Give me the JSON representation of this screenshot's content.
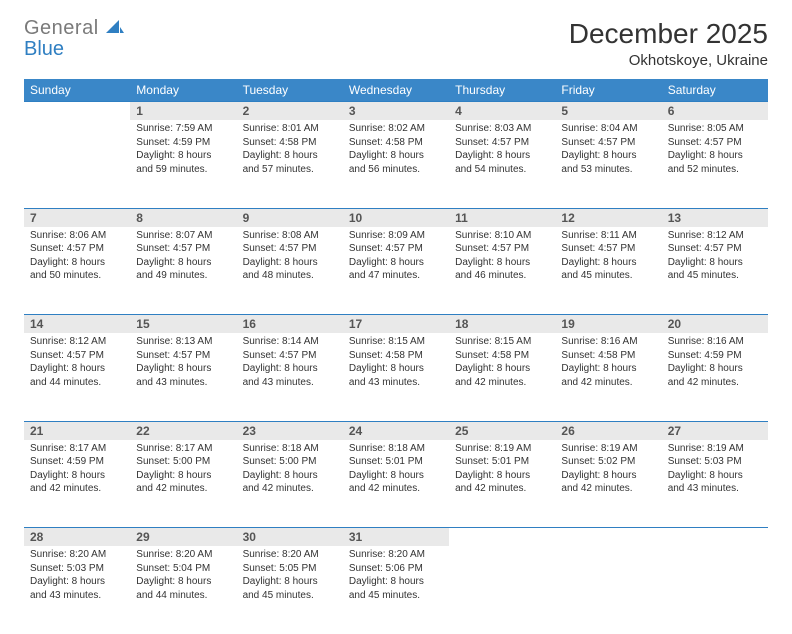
{
  "brand": {
    "line1": "General",
    "line2": "Blue",
    "logo_color": "#2f7fc2",
    "text_color_gray": "#7a7a7a"
  },
  "title": {
    "month": "December 2025",
    "location": "Okhotskoye, Ukraine"
  },
  "colors": {
    "header_bg": "#3a87c8",
    "header_text": "#ffffff",
    "daynum_bg": "#e9e9e9",
    "row_border": "#2f7fc2",
    "body_text": "#333333"
  },
  "fonts": {
    "title_size_pt": 21,
    "location_size_pt": 11,
    "weekday_size_pt": 9,
    "daynum_size_pt": 9,
    "cell_size_pt": 7.5
  },
  "weekdays": [
    "Sunday",
    "Monday",
    "Tuesday",
    "Wednesday",
    "Thursday",
    "Friday",
    "Saturday"
  ],
  "weeks": [
    [
      null,
      {
        "n": "1",
        "sunrise": "7:59 AM",
        "sunset": "4:59 PM",
        "daylight": "8 hours and 59 minutes."
      },
      {
        "n": "2",
        "sunrise": "8:01 AM",
        "sunset": "4:58 PM",
        "daylight": "8 hours and 57 minutes."
      },
      {
        "n": "3",
        "sunrise": "8:02 AM",
        "sunset": "4:58 PM",
        "daylight": "8 hours and 56 minutes."
      },
      {
        "n": "4",
        "sunrise": "8:03 AM",
        "sunset": "4:57 PM",
        "daylight": "8 hours and 54 minutes."
      },
      {
        "n": "5",
        "sunrise": "8:04 AM",
        "sunset": "4:57 PM",
        "daylight": "8 hours and 53 minutes."
      },
      {
        "n": "6",
        "sunrise": "8:05 AM",
        "sunset": "4:57 PM",
        "daylight": "8 hours and 52 minutes."
      }
    ],
    [
      {
        "n": "7",
        "sunrise": "8:06 AM",
        "sunset": "4:57 PM",
        "daylight": "8 hours and 50 minutes."
      },
      {
        "n": "8",
        "sunrise": "8:07 AM",
        "sunset": "4:57 PM",
        "daylight": "8 hours and 49 minutes."
      },
      {
        "n": "9",
        "sunrise": "8:08 AM",
        "sunset": "4:57 PM",
        "daylight": "8 hours and 48 minutes."
      },
      {
        "n": "10",
        "sunrise": "8:09 AM",
        "sunset": "4:57 PM",
        "daylight": "8 hours and 47 minutes."
      },
      {
        "n": "11",
        "sunrise": "8:10 AM",
        "sunset": "4:57 PM",
        "daylight": "8 hours and 46 minutes."
      },
      {
        "n": "12",
        "sunrise": "8:11 AM",
        "sunset": "4:57 PM",
        "daylight": "8 hours and 45 minutes."
      },
      {
        "n": "13",
        "sunrise": "8:12 AM",
        "sunset": "4:57 PM",
        "daylight": "8 hours and 45 minutes."
      }
    ],
    [
      {
        "n": "14",
        "sunrise": "8:12 AM",
        "sunset": "4:57 PM",
        "daylight": "8 hours and 44 minutes."
      },
      {
        "n": "15",
        "sunrise": "8:13 AM",
        "sunset": "4:57 PM",
        "daylight": "8 hours and 43 minutes."
      },
      {
        "n": "16",
        "sunrise": "8:14 AM",
        "sunset": "4:57 PM",
        "daylight": "8 hours and 43 minutes."
      },
      {
        "n": "17",
        "sunrise": "8:15 AM",
        "sunset": "4:58 PM",
        "daylight": "8 hours and 43 minutes."
      },
      {
        "n": "18",
        "sunrise": "8:15 AM",
        "sunset": "4:58 PM",
        "daylight": "8 hours and 42 minutes."
      },
      {
        "n": "19",
        "sunrise": "8:16 AM",
        "sunset": "4:58 PM",
        "daylight": "8 hours and 42 minutes."
      },
      {
        "n": "20",
        "sunrise": "8:16 AM",
        "sunset": "4:59 PM",
        "daylight": "8 hours and 42 minutes."
      }
    ],
    [
      {
        "n": "21",
        "sunrise": "8:17 AM",
        "sunset": "4:59 PM",
        "daylight": "8 hours and 42 minutes."
      },
      {
        "n": "22",
        "sunrise": "8:17 AM",
        "sunset": "5:00 PM",
        "daylight": "8 hours and 42 minutes."
      },
      {
        "n": "23",
        "sunrise": "8:18 AM",
        "sunset": "5:00 PM",
        "daylight": "8 hours and 42 minutes."
      },
      {
        "n": "24",
        "sunrise": "8:18 AM",
        "sunset": "5:01 PM",
        "daylight": "8 hours and 42 minutes."
      },
      {
        "n": "25",
        "sunrise": "8:19 AM",
        "sunset": "5:01 PM",
        "daylight": "8 hours and 42 minutes."
      },
      {
        "n": "26",
        "sunrise": "8:19 AM",
        "sunset": "5:02 PM",
        "daylight": "8 hours and 42 minutes."
      },
      {
        "n": "27",
        "sunrise": "8:19 AM",
        "sunset": "5:03 PM",
        "daylight": "8 hours and 43 minutes."
      }
    ],
    [
      {
        "n": "28",
        "sunrise": "8:20 AM",
        "sunset": "5:03 PM",
        "daylight": "8 hours and 43 minutes."
      },
      {
        "n": "29",
        "sunrise": "8:20 AM",
        "sunset": "5:04 PM",
        "daylight": "8 hours and 44 minutes."
      },
      {
        "n": "30",
        "sunrise": "8:20 AM",
        "sunset": "5:05 PM",
        "daylight": "8 hours and 45 minutes."
      },
      {
        "n": "31",
        "sunrise": "8:20 AM",
        "sunset": "5:06 PM",
        "daylight": "8 hours and 45 minutes."
      },
      null,
      null,
      null
    ]
  ],
  "labels": {
    "sunrise": "Sunrise:",
    "sunset": "Sunset:",
    "daylight": "Daylight:"
  }
}
